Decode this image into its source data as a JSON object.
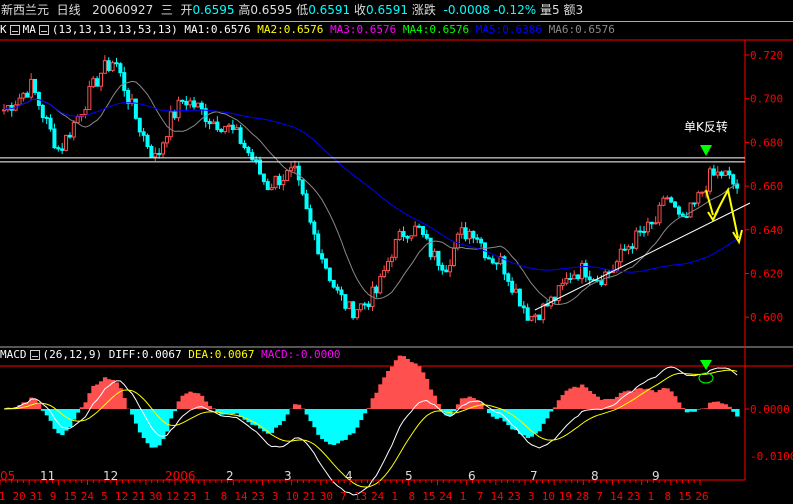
{
  "header": {
    "name": "新西兰元",
    "period": "日线",
    "date": "20060927",
    "weekday": "三",
    "open_label": "开",
    "open": "0.6595",
    "high_label": "高",
    "high": "0.6595",
    "low_label": "低",
    "low": "0.6591",
    "close_label": "收",
    "close": "0.6591",
    "change_label": "涨跌",
    "change": "-0.0008",
    "change_pct": "-0.12%",
    "vol_label": "量5",
    "amt_label": "额3"
  },
  "ma_legend": {
    "k": "K",
    "ma": "MA",
    "params": "(13,13,13,13,53,13)",
    "ma1": "MA1:0.6576",
    "ma2": "MA2:0.6576",
    "ma3": "MA3:0.6576",
    "ma4": "MA4:0.6576",
    "ma5": "MA5:0.6386",
    "ma6": "MA6:0.6576"
  },
  "macd_legend": {
    "name": "MACD",
    "params": "(26,12,9)",
    "diff": "DIFF:0.0067",
    "dea": "DEA:0.0067",
    "macd": "MACD:-0.0000"
  },
  "annotation": "单K反转",
  "colors": {
    "up": "#ff5050",
    "down": "#00ffff",
    "ma_short": "#888888",
    "ma_long": "#0000ff",
    "grid": "#ff0000",
    "diff": "#ffffff",
    "dea": "#ffff00"
  },
  "chart_data": {
    "type": "candlestick",
    "price_ticks": [
      "0.720",
      "0.700",
      "0.680",
      "0.660",
      "0.640",
      "0.620",
      "0.600"
    ],
    "macd_ticks": [
      "0.0000",
      "-0.0100"
    ],
    "month_labels": [
      {
        "t": "05",
        "red": true
      },
      {
        "t": "11"
      },
      {
        "t": "12"
      },
      {
        "t": "2006",
        "red": true
      },
      {
        "t": "2"
      },
      {
        "t": "3"
      },
      {
        "t": "4"
      },
      {
        "t": "5"
      },
      {
        "t": "6"
      },
      {
        "t": "7"
      },
      {
        "t": "8"
      },
      {
        "t": "9"
      }
    ],
    "day_labels": [
      "1",
      "20",
      "31",
      "9",
      "15",
      "24",
      "5",
      "12",
      "21",
      "30",
      "12",
      "23",
      "1",
      "8",
      "14",
      "23",
      "3",
      "10",
      "21",
      "30",
      "7",
      "13",
      "24",
      "1",
      "8",
      "15",
      "24",
      "1",
      "7",
      "14",
      "23",
      "3",
      "10",
      "19",
      "28",
      "7",
      "14",
      "23",
      "1",
      "8",
      "15",
      "26"
    ],
    "approx_closes": [
      0.695,
      0.7,
      0.706,
      0.69,
      0.676,
      0.688,
      0.7,
      0.712,
      0.718,
      0.7,
      0.684,
      0.672,
      0.69,
      0.7,
      0.696,
      0.69,
      0.688,
      0.682,
      0.672,
      0.66,
      0.664,
      0.666,
      0.645,
      0.628,
      0.612,
      0.603,
      0.606,
      0.612,
      0.63,
      0.64,
      0.64,
      0.628,
      0.624,
      0.638,
      0.64,
      0.628,
      0.625,
      0.612,
      0.6,
      0.604,
      0.61,
      0.62,
      0.622,
      0.618,
      0.622,
      0.632,
      0.638,
      0.642,
      0.656,
      0.642,
      0.652,
      0.664,
      0.666,
      0.659
    ],
    "resistance": 0.672
  }
}
